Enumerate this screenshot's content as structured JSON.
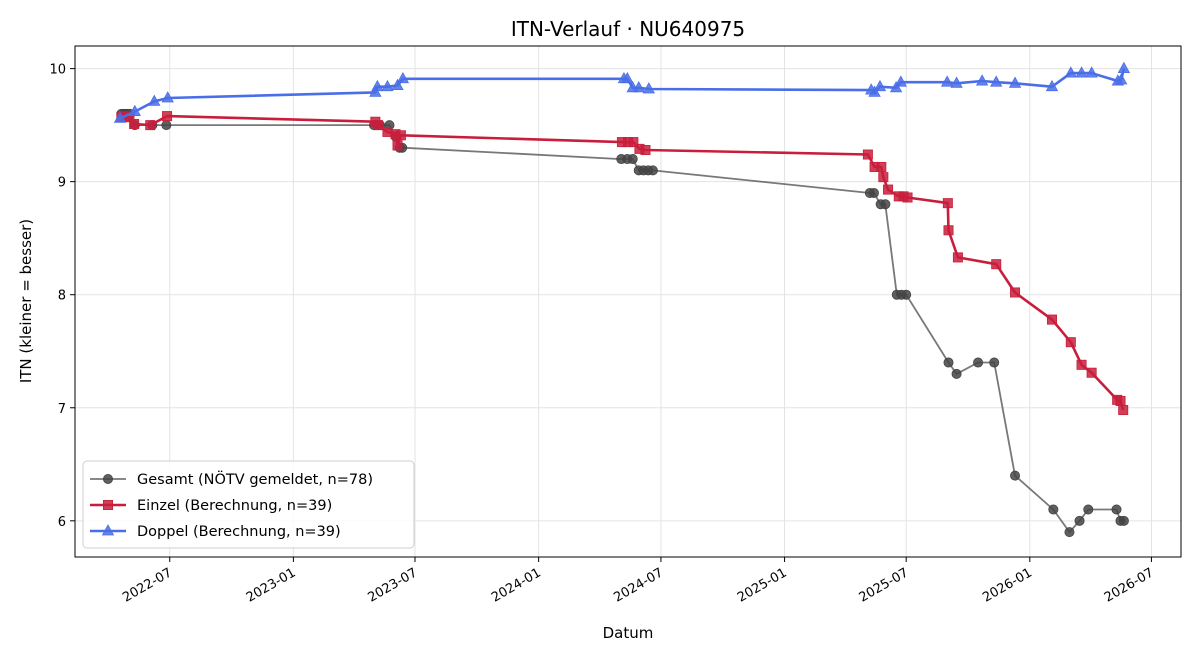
{
  "chart_data": {
    "type": "line",
    "title": "ITN-Verlauf · NU640975",
    "xlabel": "Datum",
    "ylabel": "ITN  (kleiner = besser)",
    "x_type": "date",
    "xlim": [
      "2022-02-10",
      "2026-08-14"
    ],
    "ylim": [
      5.68,
      10.2
    ],
    "x_ticks": [
      "2022-07",
      "2023-01",
      "2023-07",
      "2024-01",
      "2024-07",
      "2025-01",
      "2025-07",
      "2026-01",
      "2026-07"
    ],
    "y_ticks": [
      6,
      7,
      8,
      9,
      10
    ],
    "grid": true,
    "legend_position": "lower-left",
    "series": [
      {
        "name": "Gesamt (NÖTV gemeldet, n=78)",
        "color": "#444444",
        "marker": "circle",
        "points": [
          [
            "2022-04-20",
            9.6
          ],
          [
            "2022-04-24",
            9.6
          ],
          [
            "2022-04-28",
            9.6
          ],
          [
            "2022-05-03",
            9.6
          ],
          [
            "2022-05-10",
            9.5
          ],
          [
            "2022-06-05",
            9.5
          ],
          [
            "2022-06-26",
            9.5
          ],
          [
            "2023-05-01",
            9.5
          ],
          [
            "2023-05-10",
            9.5
          ],
          [
            "2023-05-24",
            9.5
          ],
          [
            "2023-06-02",
            9.4
          ],
          [
            "2023-06-08",
            9.3
          ],
          [
            "2023-06-12",
            9.3
          ],
          [
            "2024-05-03",
            9.2
          ],
          [
            "2024-05-12",
            9.2
          ],
          [
            "2024-05-20",
            9.2
          ],
          [
            "2024-05-29",
            9.1
          ],
          [
            "2024-06-05",
            9.1
          ],
          [
            "2024-06-12",
            9.1
          ],
          [
            "2024-06-19",
            9.1
          ],
          [
            "2025-05-08",
            8.9
          ],
          [
            "2025-05-14",
            8.9
          ],
          [
            "2025-05-24",
            8.8
          ],
          [
            "2025-05-31",
            8.8
          ],
          [
            "2025-06-17",
            8.0
          ],
          [
            "2025-06-24",
            8.0
          ],
          [
            "2025-07-01",
            8.0
          ],
          [
            "2025-09-02",
            7.4
          ],
          [
            "2025-09-14",
            7.3
          ],
          [
            "2025-10-16",
            7.4
          ],
          [
            "2025-11-09",
            7.4
          ],
          [
            "2025-12-10",
            6.4
          ],
          [
            "2026-02-05",
            6.1
          ],
          [
            "2026-03-01",
            5.9
          ],
          [
            "2026-03-16",
            6.0
          ],
          [
            "2026-03-29",
            6.1
          ],
          [
            "2026-05-10",
            6.1
          ],
          [
            "2026-05-16",
            6.0
          ],
          [
            "2026-05-21",
            6.0
          ]
        ]
      },
      {
        "name": "Einzel (Berechnung, n=39)",
        "color": "#c81e3c",
        "marker": "square",
        "points": [
          [
            "2022-04-20",
            9.57
          ],
          [
            "2022-04-26",
            9.58
          ],
          [
            "2022-05-02",
            9.57
          ],
          [
            "2022-05-09",
            9.51
          ],
          [
            "2022-06-02",
            9.5
          ],
          [
            "2022-06-27",
            9.58
          ],
          [
            "2023-05-03",
            9.53
          ],
          [
            "2023-05-07",
            9.5
          ],
          [
            "2023-05-21",
            9.44
          ],
          [
            "2023-06-02",
            9.42
          ],
          [
            "2023-06-05",
            9.32
          ],
          [
            "2023-06-10",
            9.41
          ],
          [
            "2024-05-04",
            9.35
          ],
          [
            "2024-05-13",
            9.35
          ],
          [
            "2024-05-21",
            9.35
          ],
          [
            "2024-05-30",
            9.29
          ],
          [
            "2024-06-08",
            9.28
          ],
          [
            "2025-05-05",
            9.24
          ],
          [
            "2025-05-15",
            9.13
          ],
          [
            "2025-05-25",
            9.13
          ],
          [
            "2025-05-28",
            9.04
          ],
          [
            "2025-06-04",
            8.93
          ],
          [
            "2025-06-20",
            8.87
          ],
          [
            "2025-06-27",
            8.87
          ],
          [
            "2025-07-03",
            8.86
          ],
          [
            "2025-09-01",
            8.81
          ],
          [
            "2025-09-02",
            8.57
          ],
          [
            "2025-09-16",
            8.33
          ],
          [
            "2025-11-12",
            8.27
          ],
          [
            "2025-12-10",
            8.02
          ],
          [
            "2026-02-03",
            7.78
          ],
          [
            "2026-03-03",
            7.58
          ],
          [
            "2026-03-19",
            7.38
          ],
          [
            "2026-04-03",
            7.31
          ],
          [
            "2026-05-11",
            7.07
          ],
          [
            "2026-05-16",
            7.06
          ],
          [
            "2026-05-20",
            6.98
          ]
        ]
      },
      {
        "name": "Doppel (Berechnung, n=39)",
        "color": "#4a6ee8",
        "marker": "triangle",
        "points": [
          [
            "2022-04-18",
            9.56
          ],
          [
            "2022-05-10",
            9.62
          ],
          [
            "2022-06-08",
            9.71
          ],
          [
            "2022-06-28",
            9.74
          ],
          [
            "2023-05-03",
            9.79
          ],
          [
            "2023-05-06",
            9.84
          ],
          [
            "2023-05-21",
            9.84
          ],
          [
            "2023-06-05",
            9.85
          ],
          [
            "2023-06-13",
            9.91
          ],
          [
            "2024-05-07",
            9.91
          ],
          [
            "2024-05-12",
            9.91
          ],
          [
            "2024-05-20",
            9.83
          ],
          [
            "2024-05-29",
            9.83
          ],
          [
            "2024-06-13",
            9.82
          ],
          [
            "2025-05-10",
            9.81
          ],
          [
            "2025-05-15",
            9.79
          ],
          [
            "2025-05-23",
            9.84
          ],
          [
            "2025-06-16",
            9.83
          ],
          [
            "2025-06-23",
            9.88
          ],
          [
            "2025-08-31",
            9.88
          ],
          [
            "2025-09-14",
            9.87
          ],
          [
            "2025-10-22",
            9.89
          ],
          [
            "2025-11-12",
            9.88
          ],
          [
            "2025-12-10",
            9.87
          ],
          [
            "2026-02-03",
            9.84
          ],
          [
            "2026-03-03",
            9.96
          ],
          [
            "2026-03-19",
            9.96
          ],
          [
            "2026-04-03",
            9.96
          ],
          [
            "2026-05-12",
            9.89
          ],
          [
            "2026-05-17",
            9.9
          ],
          [
            "2026-05-21",
            10.0
          ]
        ]
      }
    ]
  }
}
